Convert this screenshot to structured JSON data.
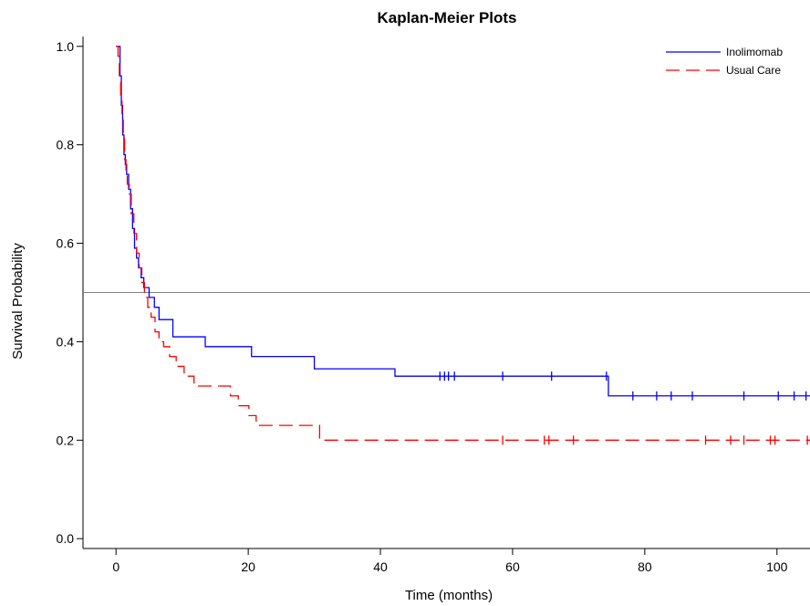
{
  "chart_data": {
    "type": "line",
    "step": true,
    "title": "Kaplan-Meier Plots",
    "xlabel": "Time (months)",
    "ylabel": "Survival Probability",
    "xlim": [
      -5,
      105
    ],
    "ylim": [
      -0.02,
      1.02
    ],
    "xticks": [
      0,
      20,
      40,
      60,
      80,
      100
    ],
    "yticks": [
      0.0,
      0.2,
      0.4,
      0.6,
      0.8,
      1.0
    ],
    "ytick_labels": [
      "0.0",
      "0.2",
      "0.4",
      "0.6",
      "0.8",
      "1.0"
    ],
    "reference_line_y": 0.5,
    "legend_position": "top-right",
    "series": [
      {
        "name": "Inolimomab",
        "color": "#0000ff",
        "dash": "solid",
        "x": [
          0,
          0.6,
          0.8,
          1.0,
          1.2,
          1.4,
          1.6,
          1.9,
          2.2,
          2.5,
          2.8,
          3.1,
          3.4,
          3.8,
          4.2,
          5.0,
          5.8,
          6.5,
          8.6,
          13.5,
          20.5,
          30.0,
          42.2,
          74.5,
          105
        ],
        "y": [
          1.0,
          0.94,
          0.88,
          0.82,
          0.78,
          0.76,
          0.74,
          0.71,
          0.67,
          0.63,
          0.59,
          0.57,
          0.55,
          0.53,
          0.51,
          0.49,
          0.47,
          0.445,
          0.41,
          0.39,
          0.37,
          0.345,
          0.33,
          0.29,
          0.29
        ],
        "censored_x": [
          49,
          49.7,
          50.3,
          51.2,
          58.5,
          65.9,
          74.2,
          78.2,
          81.8,
          84,
          87.2,
          95,
          100.2,
          102.6,
          104.4
        ],
        "censored_y": [
          0.33,
          0.33,
          0.33,
          0.33,
          0.33,
          0.33,
          0.33,
          0.29,
          0.29,
          0.29,
          0.29,
          0.29,
          0.29,
          0.29,
          0.29
        ]
      },
      {
        "name": "Usual Care",
        "color": "#ff0000",
        "dash": "dashed",
        "x": [
          0,
          0.3,
          0.5,
          0.7,
          0.9,
          1.1,
          1.3,
          1.5,
          1.7,
          2.0,
          2.3,
          2.7,
          3.1,
          3.5,
          3.9,
          4.3,
          4.8,
          5.3,
          5.9,
          6.5,
          7.2,
          8.1,
          9.1,
          10.3,
          11.8,
          17.3,
          18.5,
          20.1,
          21.2,
          30.8,
          105
        ],
        "y": [
          1.0,
          0.98,
          0.94,
          0.9,
          0.86,
          0.82,
          0.77,
          0.74,
          0.72,
          0.7,
          0.66,
          0.62,
          0.58,
          0.55,
          0.52,
          0.49,
          0.47,
          0.45,
          0.42,
          0.4,
          0.39,
          0.37,
          0.35,
          0.33,
          0.31,
          0.29,
          0.27,
          0.25,
          0.23,
          0.2,
          0.2
        ],
        "censored_x": [
          58.5,
          64.8,
          65.5,
          69.2,
          89.2,
          93,
          95,
          99,
          99.7,
          104.6
        ],
        "censored_y": [
          0.2,
          0.2,
          0.2,
          0.2,
          0.2,
          0.2,
          0.2,
          0.2,
          0.2,
          0.2
        ]
      }
    ]
  }
}
